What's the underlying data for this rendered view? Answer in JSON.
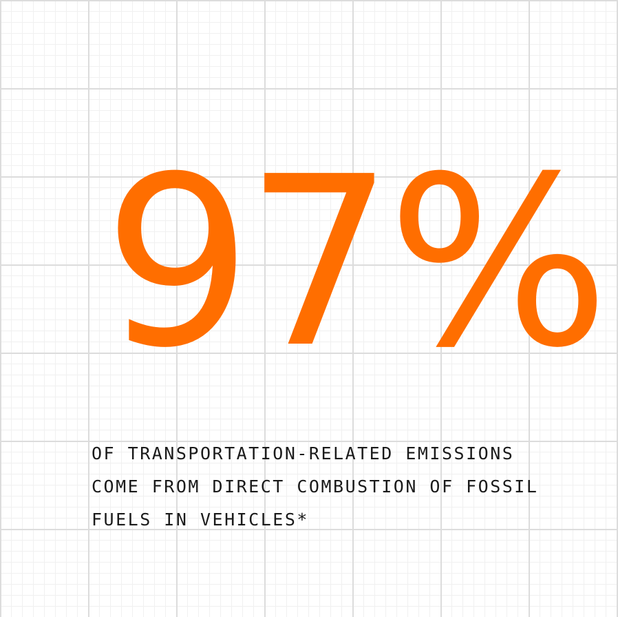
{
  "stat": {
    "value": "97%",
    "color": "#ff6e00"
  },
  "caption": {
    "lines": [
      "OF TRANSPORTATION-RELATED EMISSIONS",
      "COME FROM DIRECT COMBUSTION OF FOSSIL",
      "FUELS IN VEHICLES*"
    ]
  },
  "background": {
    "grid_line_color": "#dcdcdc",
    "minor_grid_color": "#f0f0f0"
  }
}
